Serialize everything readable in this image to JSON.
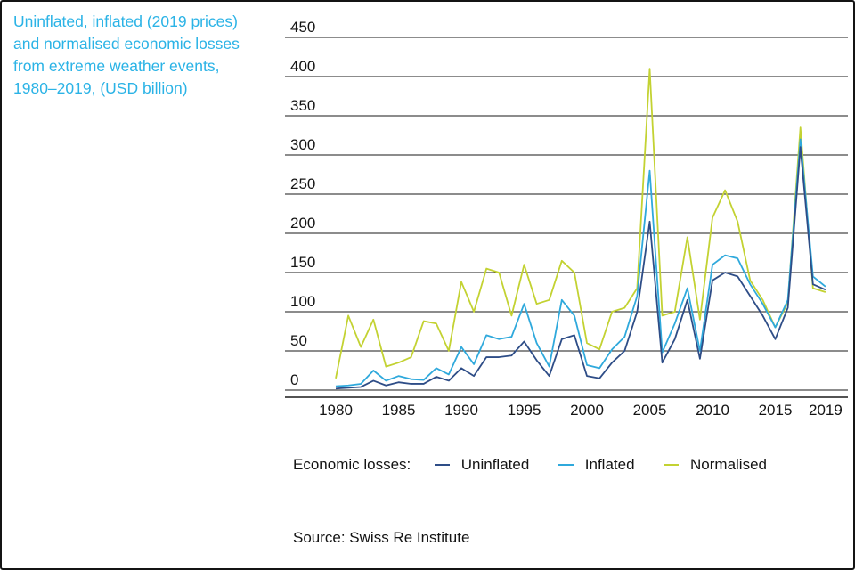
{
  "title_block": {
    "lines": [
      "Uninflated, inflated (2019 prices)",
      "and normalised economic losses",
      "from extreme weather events,",
      "1980–2019, (USD billion)"
    ]
  },
  "legend": {
    "label": "Economic losses:"
  },
  "source": "Source: Swiss Re Institute",
  "colors": {
    "caption": "#2bb3e6",
    "grid": "#1a1a1a",
    "axis_text": "#141414"
  },
  "chart_data": {
    "type": "line",
    "title": "Uninflated, inflated (2019 prices) and normalised economic losses from extreme weather events, 1980–2019, (USD billion)",
    "xlabel": "",
    "ylabel": "USD billion",
    "ylim": [
      0,
      450
    ],
    "y_ticks": [
      450,
      400,
      350,
      300,
      250,
      200,
      150,
      100,
      50,
      0
    ],
    "x_ticks": [
      1980,
      1985,
      1990,
      1995,
      2000,
      2005,
      2010,
      2015,
      2019
    ],
    "grid": true,
    "legend_position": "bottom",
    "x": [
      1980,
      1981,
      1982,
      1983,
      1984,
      1985,
      1986,
      1987,
      1988,
      1989,
      1990,
      1991,
      1992,
      1993,
      1994,
      1995,
      1996,
      1997,
      1998,
      1999,
      2000,
      2001,
      2002,
      2003,
      2004,
      2005,
      2006,
      2007,
      2008,
      2009,
      2010,
      2011,
      2012,
      2013,
      2014,
      2015,
      2016,
      2017,
      2018,
      2019
    ],
    "series": [
      {
        "name": "Uninflated",
        "color": "#2e4d87",
        "values": [
          2,
          3,
          4,
          12,
          6,
          10,
          8,
          8,
          17,
          12,
          28,
          18,
          42,
          42,
          44,
          62,
          38,
          18,
          65,
          70,
          18,
          15,
          35,
          50,
          100,
          215,
          35,
          65,
          115,
          40,
          140,
          150,
          145,
          120,
          95,
          65,
          105,
          310,
          135,
          128
        ]
      },
      {
        "name": "Inflated",
        "color": "#2fa9dc",
        "values": [
          5,
          6,
          8,
          25,
          12,
          18,
          14,
          13,
          28,
          20,
          55,
          33,
          70,
          65,
          68,
          110,
          60,
          30,
          115,
          95,
          32,
          28,
          52,
          68,
          120,
          280,
          48,
          85,
          130,
          50,
          160,
          172,
          168,
          135,
          110,
          80,
          115,
          320,
          145,
          132
        ]
      },
      {
        "name": "Normalised",
        "color": "#c3d232",
        "values": [
          15,
          95,
          55,
          90,
          30,
          35,
          42,
          88,
          85,
          50,
          138,
          100,
          155,
          150,
          95,
          160,
          110,
          115,
          165,
          150,
          60,
          52,
          100,
          105,
          130,
          410,
          95,
          100,
          195,
          90,
          220,
          255,
          215,
          140,
          115,
          80,
          112,
          335,
          130,
          125
        ]
      }
    ]
  }
}
